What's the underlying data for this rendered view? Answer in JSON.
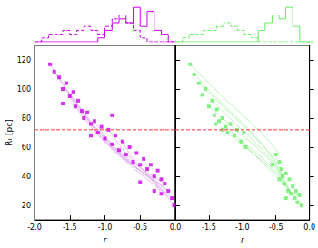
{
  "chart_data": [
    {
      "type": "histogram",
      "xlim": [
        -2.0,
        0.0
      ],
      "ylim": [
        0,
        10
      ],
      "tick_labels": false,
      "bins": [
        -2.0,
        -1.9,
        -1.8,
        -1.7,
        -1.6,
        -1.5,
        -1.4,
        -1.3,
        -1.2,
        -1.1,
        -1.0,
        -0.9,
        -0.8,
        -0.7,
        -0.6,
        -0.5,
        -0.4,
        -0.3,
        -0.2,
        -0.1,
        0.0
      ],
      "series": [
        {
          "color": "#cc00ee",
          "line_style": "dashed",
          "values": [
            0,
            1,
            2,
            2,
            3,
            2,
            3,
            4,
            3,
            2,
            4,
            6,
            7,
            5,
            3,
            1,
            0,
            0,
            0,
            0
          ]
        },
        {
          "color": "#cc00ee",
          "line_style": "solid",
          "values": [
            0,
            0,
            0,
            0,
            0,
            0,
            0,
            0,
            0,
            1,
            3,
            5,
            6,
            5,
            9,
            4,
            8,
            3,
            2,
            0
          ]
        }
      ]
    },
    {
      "type": "histogram",
      "xlim": [
        -2.0,
        0.0
      ],
      "ylim": [
        0,
        10
      ],
      "tick_labels": false,
      "bins": [
        -2.0,
        -1.9,
        -1.8,
        -1.7,
        -1.6,
        -1.5,
        -1.4,
        -1.3,
        -1.2,
        -1.1,
        -1.0,
        -0.9,
        -0.8,
        -0.7,
        -0.6,
        -0.5,
        -0.4,
        -0.3,
        -0.2,
        -0.1,
        0.0
      ],
      "series": [
        {
          "color": "#66ee66",
          "line_style": "dashed",
          "values": [
            0,
            1,
            2,
            2,
            3,
            3,
            4,
            5,
            4,
            3,
            2,
            1,
            0,
            0,
            0,
            0,
            0,
            0,
            0,
            0
          ]
        },
        {
          "color": "#66ee66",
          "line_style": "solid",
          "values": [
            0,
            0,
            0,
            0,
            0,
            0,
            0,
            0,
            0,
            0,
            0,
            0,
            3,
            5,
            7,
            6,
            9,
            4,
            0,
            0
          ]
        }
      ]
    },
    {
      "type": "scatter",
      "x_label": "r",
      "y_label": "Rₜ [pc]",
      "xlim": [
        -2.0,
        0.0
      ],
      "ylim": [
        10,
        130
      ],
      "xticks": [
        {
          "value": -2.0,
          "label": "-2.0"
        },
        {
          "value": -1.5,
          "label": "-1.5"
        },
        {
          "value": -1.0,
          "label": "-1.0"
        },
        {
          "value": -0.5,
          "label": "-0.5"
        },
        {
          "value": 0.0,
          "label": "0.0"
        }
      ],
      "yticks": [
        20,
        40,
        60,
        80,
        100,
        120
      ],
      "grid": false,
      "series": [
        {
          "type": "line",
          "color": "#e2aaf2",
          "x": [
            -1.78,
            -1.4,
            -1.0,
            -0.6,
            -0.2
          ],
          "values": [
            117,
            90,
            66,
            48,
            34
          ]
        },
        {
          "type": "line",
          "color": "#e2aaf2",
          "x": [
            -1.65,
            -1.3,
            -0.9,
            -0.5,
            -0.1
          ],
          "values": [
            108,
            82,
            60,
            44,
            30
          ]
        },
        {
          "type": "line",
          "color": "#e2aaf2",
          "x": [
            -1.5,
            -1.2,
            -0.8,
            -0.4,
            -0.05
          ],
          "values": [
            95,
            74,
            55,
            40,
            25
          ]
        },
        {
          "type": "line",
          "color": "#e2aaf2",
          "x": [
            -1.33,
            -1.0,
            -0.7,
            -0.4,
            -0.1
          ],
          "values": [
            85,
            64,
            50,
            38,
            26
          ]
        },
        {
          "type": "line",
          "color": "#e2aaf2",
          "x": [
            -1.15,
            -0.9,
            -0.6,
            -0.3,
            -0.02
          ],
          "values": [
            78,
            62,
            48,
            36,
            20
          ]
        },
        {
          "type": "line",
          "color": "#e2aaf2",
          "x": [
            -0.95,
            -0.7,
            -0.5,
            -0.3,
            -0.1
          ],
          "values": [
            72,
            56,
            46,
            38,
            30
          ]
        },
        {
          "type": "line",
          "color": "#e2aaf2",
          "x": [
            -1.72,
            -1.3,
            -0.9,
            -0.5,
            -0.15
          ],
          "values": [
            112,
            84,
            62,
            46,
            35
          ]
        },
        {
          "type": "line",
          "color": "#e2aaf2",
          "x": [
            -0.75,
            -0.6,
            -0.45,
            -0.3,
            -0.2
          ],
          "values": [
            64,
            52,
            44,
            36,
            28
          ]
        },
        {
          "type": "scatter",
          "color": "#cc00ee",
          "marker": "square",
          "x": [
            -1.78,
            -1.72,
            -1.65,
            -1.6,
            -1.55,
            -1.5,
            -1.45,
            -1.42,
            -1.38,
            -1.33,
            -1.3,
            -1.25,
            -1.2,
            -1.15,
            -1.1,
            -1.05,
            -1.0,
            -0.95,
            -0.9,
            -0.85,
            -0.8,
            -0.75,
            -0.7,
            -0.65,
            -0.6,
            -0.55,
            -0.5,
            -0.45,
            -0.4,
            -0.35,
            -0.3,
            -0.25,
            -0.2,
            -0.15,
            -0.1,
            -0.05,
            -0.02,
            -0.3,
            -0.5,
            -0.2,
            -1.2,
            -0.9,
            -1.6
          ],
          "values": [
            117,
            112,
            108,
            100,
            104,
            95,
            98,
            88,
            92,
            85,
            80,
            84,
            76,
            78,
            70,
            74,
            66,
            72,
            62,
            68,
            58,
            64,
            55,
            60,
            50,
            56,
            48,
            52,
            45,
            48,
            40,
            44,
            38,
            35,
            30,
            25,
            20,
            30,
            36,
            28,
            68,
            82,
            90
          ]
        },
        {
          "type": "line",
          "color": "#ff3333",
          "line_style": "dashed",
          "x": [
            -2.0,
            0.0
          ],
          "values": [
            72,
            72
          ]
        }
      ]
    },
    {
      "type": "scatter",
      "x_label": "r",
      "xlim": [
        -2.0,
        0.0
      ],
      "ylim": [
        10,
        130
      ],
      "xticks": [
        {
          "value": -1.5,
          "label": "-1.5"
        },
        {
          "value": -1.0,
          "label": "-1.0"
        },
        {
          "value": -0.5,
          "label": "-0.5"
        },
        {
          "value": 0.0,
          "label": "0.0"
        }
      ],
      "yticks": [
        20,
        40,
        60,
        80,
        100,
        120
      ],
      "tick_labels": "x",
      "grid": false,
      "series": [
        {
          "type": "line",
          "color": "#aaf0aa",
          "x": [
            -1.78,
            -1.3,
            -0.9,
            -0.6,
            -0.45
          ],
          "values": [
            117,
            95,
            78,
            64,
            55
          ]
        },
        {
          "type": "line",
          "color": "#aaf0aa",
          "x": [
            -1.65,
            -1.2,
            -0.8,
            -0.5,
            -0.4
          ],
          "values": [
            104,
            84,
            66,
            50,
            40
          ]
        },
        {
          "type": "line",
          "color": "#aaf0aa",
          "x": [
            -1.5,
            -1.1,
            -0.7,
            -0.45,
            -0.32
          ],
          "values": [
            88,
            72,
            56,
            42,
            30
          ]
        },
        {
          "type": "line",
          "color": "#aaf0aa",
          "x": [
            -1.35,
            -1.0,
            -0.6,
            -0.35,
            -0.22
          ],
          "values": [
            78,
            64,
            48,
            34,
            25
          ]
        },
        {
          "type": "line",
          "color": "#aaf0aa",
          "x": [
            -1.22,
            -0.9,
            -0.5,
            -0.3,
            -0.15
          ],
          "values": [
            70,
            58,
            42,
            30,
            27
          ]
        },
        {
          "type": "line",
          "color": "#aaf0aa",
          "x": [
            -1.02,
            -0.8,
            -0.5,
            -0.25,
            -0.12
          ],
          "values": [
            64,
            54,
            40,
            28,
            20
          ]
        },
        {
          "type": "line",
          "color": "#aaf0aa",
          "x": [
            -1.72,
            -1.3,
            -0.9,
            -0.55,
            -0.38
          ],
          "values": [
            110,
            90,
            72,
            52,
            35
          ]
        },
        {
          "type": "line",
          "color": "#aaf0aa",
          "x": [
            -1.45,
            -1.1,
            -0.7,
            -0.4,
            -0.28
          ],
          "values": [
            92,
            76,
            58,
            40,
            28
          ]
        },
        {
          "type": "scatter",
          "color": "#66ee66",
          "marker": "square",
          "x": [
            -1.78,
            -1.72,
            -1.65,
            -1.6,
            -1.55,
            -1.5,
            -1.45,
            -1.42,
            -1.38,
            -1.35,
            -1.3,
            -1.25,
            -1.22,
            -1.18,
            -1.12,
            -1.08,
            -1.02,
            -0.98,
            -0.95,
            -1.3,
            -1.4,
            -0.5,
            -0.45,
            -0.42,
            -0.4,
            -0.38,
            -0.35,
            -0.32,
            -0.3,
            -0.28,
            -0.25,
            -0.22,
            -0.2,
            -0.18,
            -0.15,
            -0.12,
            -0.45,
            -0.35,
            -0.55
          ],
          "values": [
            117,
            110,
            104,
            96,
            100,
            88,
            92,
            82,
            86,
            78,
            80,
            74,
            70,
            76,
            68,
            72,
            64,
            70,
            60,
            72,
            76,
            55,
            50,
            45,
            40,
            35,
            42,
            30,
            38,
            28,
            33,
            25,
            30,
            22,
            27,
            20,
            38,
            25,
            48
          ]
        },
        {
          "type": "line",
          "color": "#ff3333",
          "line_style": "dashed",
          "x": [
            -2.0,
            0.0
          ],
          "values": [
            72,
            72
          ]
        }
      ]
    }
  ]
}
